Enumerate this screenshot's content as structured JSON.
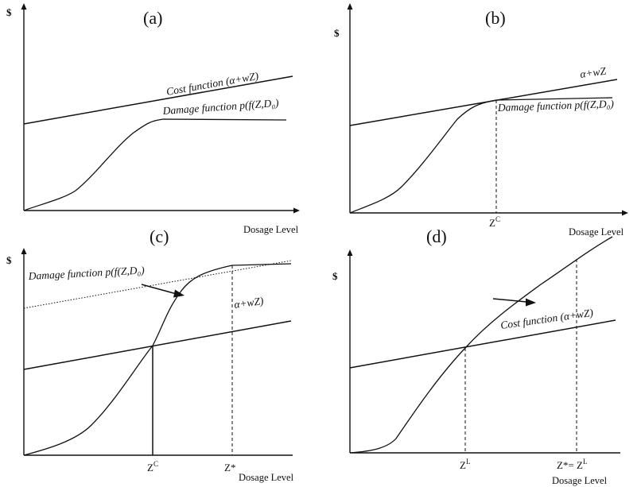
{
  "panels": [
    {
      "id": "a",
      "label": "(a)",
      "y_axis_label": "$",
      "x_axis_label": "Dosage Level",
      "cost_label": "Cost function (α+wZ)",
      "damage_label": "Damage function p(f(Z,D₀)"
    },
    {
      "id": "b",
      "label": "(b)",
      "y_axis_label": "$",
      "x_axis_label": "Dosage Level",
      "cost_label": "α+wZ",
      "damage_label": "Damage function p(f(Z,D₀)",
      "tick_1": "Z",
      "tick_1_sup": "C"
    },
    {
      "id": "c",
      "label": "(c)",
      "y_axis_label": "$",
      "x_axis_label": "Dosage Level",
      "cost_label": "α+wZ)",
      "damage_label": "Damage function p(f(Z,D₀)",
      "tick_1": "Z",
      "tick_1_sup": "C",
      "tick_2": "Z*"
    },
    {
      "id": "d",
      "label": "(d)",
      "y_axis_label": "$",
      "x_axis_label": "Dosage Level",
      "cost_label": "Cost function (α+wZ)",
      "tick_1": "Z",
      "tick_1_sup": "L",
      "tick_2": "Z*= Z",
      "tick_2_sup": "L"
    }
  ]
}
